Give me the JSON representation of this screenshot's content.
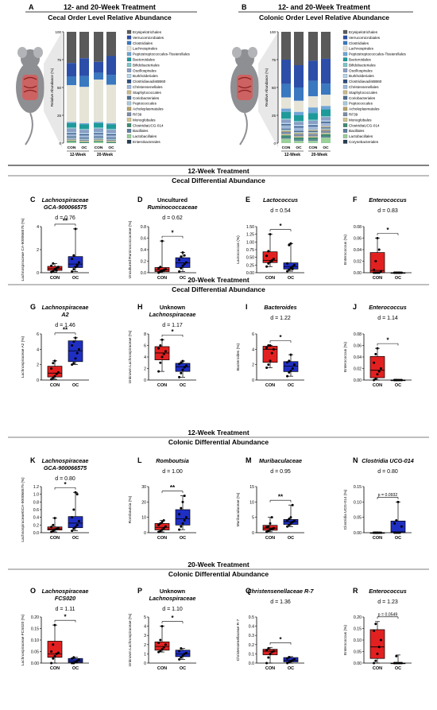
{
  "top": {
    "A": {
      "letter": "A",
      "head": "12- and 20-Week Treatment",
      "sub": "Cecal Order Level Relative Abundance"
    },
    "B": {
      "letter": "B",
      "head": "12- and 20-Week Treatment",
      "sub": "Colonic Order Level Relative Abundance"
    }
  },
  "legendA": [
    "Erysipelotrichales",
    "Verrucomicrobiales",
    "Clostridiales",
    "Lachnospirales",
    "Peptostreptococcales-Tissierellales",
    "Bacteroidales",
    "Bifidobacteriales",
    "Oscillospirales",
    "Burkholderiales",
    "ClostridiavadinBB60",
    "Christensenellales",
    "Staphylococcales",
    "Coriobacteriales",
    "Peptococcales",
    "Acholeplasmatales",
    "RF39",
    "Monoglobales",
    "ClostridiaUCG-014",
    "Bacillales",
    "Lactobacillales",
    "Enterobacterales"
  ],
  "legendB": [
    "Erysipelotrichales",
    "Verrucomicrobiales",
    "Clostridiales",
    "Lachnospirales",
    "Peptostreptococcales-Tissierellales",
    "Bacteroidales",
    "Bifidobacteriales",
    "Oscillospirales",
    "Burkholderiales",
    "ClostridiavadinBB60",
    "Christensenellales",
    "Staphylococcales",
    "Coriobacteriales",
    "Peptococcales",
    "Acholeplasmatales",
    "RF39",
    "Monoglobales",
    "ClostridiaUCG-014",
    "Bacillales",
    "Lactobacillales",
    "Corynebacteriales"
  ],
  "colors": {
    "con": "#e32020",
    "oc": "#1f2fc4",
    "conDark": "#a01515",
    "ocDark": "#0f1a7a"
  },
  "stackColors": [
    "#5a5a5a",
    "#2c4ea8",
    "#3a78c0",
    "#e6e4d7",
    "#6fa6d6",
    "#1e9a9a",
    "#7fc6c8",
    "#8a9fc6",
    "#b7d7ec",
    "#2f4f7f",
    "#9fb8d8",
    "#c9b88a",
    "#4d6e92",
    "#a8c8d8",
    "#b3a16a",
    "#7a8ca8",
    "#d3c58f",
    "#3f8c72",
    "#5d7f9e",
    "#9ad09a",
    "#243b53"
  ],
  "stacked": {
    "A": {
      "ylabel": "Relative Abundance (%)",
      "yticks": [
        "0",
        "25",
        "50",
        "75",
        "100"
      ],
      "groups": [
        "12-Week",
        "20-Week"
      ],
      "bars": [
        {
          "label": "CON",
          "values": [
            28,
            12,
            8,
            33,
            1,
            4,
            1,
            3,
            1,
            1,
            2,
            0,
            1,
            1,
            0,
            1,
            1,
            1,
            0,
            1,
            0
          ]
        },
        {
          "label": "OC",
          "values": [
            24,
            16,
            10,
            33,
            1,
            4,
            1,
            3,
            1,
            1,
            2,
            0,
            1,
            1,
            0,
            1,
            1,
            1,
            0,
            0,
            0
          ]
        },
        {
          "label": "CON",
          "values": [
            27,
            10,
            6,
            38,
            1,
            4,
            1,
            3,
            1,
            1,
            2,
            0,
            1,
            1,
            0,
            1,
            1,
            1,
            0,
            1,
            0
          ]
        },
        {
          "label": "OC",
          "values": [
            22,
            17,
            9,
            35,
            1,
            4,
            1,
            3,
            1,
            1,
            2,
            0,
            1,
            1,
            0,
            1,
            1,
            1,
            0,
            0,
            0
          ]
        }
      ]
    },
    "B": {
      "ylabel": "Realtive Abundance (%)",
      "yticks": [
        "0",
        "25",
        "50",
        "75",
        "100"
      ],
      "groups": [
        "12-Week",
        "20-Week"
      ],
      "bars": [
        {
          "label": "CON",
          "values": [
            25,
            22,
            12,
            10,
            3,
            6,
            1,
            3,
            1,
            1,
            3,
            0,
            1,
            1,
            1,
            2,
            1,
            2,
            1,
            4,
            0
          ]
        },
        {
          "label": "OC",
          "values": [
            30,
            20,
            12,
            10,
            3,
            5,
            1,
            3,
            1,
            1,
            3,
            0,
            1,
            1,
            1,
            2,
            1,
            2,
            1,
            2,
            0
          ]
        },
        {
          "label": "CON",
          "values": [
            26,
            18,
            14,
            10,
            5,
            6,
            1,
            3,
            1,
            1,
            3,
            1,
            1,
            1,
            1,
            2,
            1,
            2,
            1,
            2,
            0
          ]
        },
        {
          "label": "OC",
          "values": [
            24,
            22,
            10,
            10,
            3,
            6,
            1,
            3,
            1,
            1,
            3,
            1,
            1,
            1,
            1,
            2,
            1,
            2,
            1,
            5,
            0
          ]
        }
      ]
    }
  },
  "sections": [
    {
      "treatment": "12-Week Treatment",
      "title": "Cecal Differential Abundance"
    },
    {
      "treatment": "20-Week Treatment",
      "title": "Cecal Differential Abundance"
    },
    {
      "treatment": "12-Week Treatment",
      "title": "Colonic Differential Abundance"
    },
    {
      "treatment": "20-Week Treatment",
      "title": "Colonic Differential Abundance"
    }
  ],
  "panels": [
    {
      "letter": "C",
      "title1": "Lachnospiraceae",
      "title2": "GCA-900066575",
      "italic1": true,
      "italic2": true,
      "d": "d = 0.76",
      "ylabel": "Lachnospiraceae CA-900066575 (%)",
      "yticks": [
        "0",
        "2",
        "4"
      ],
      "ymax": 4.5,
      "sig": "**",
      "con": [
        0.05,
        0.15,
        0.3,
        0.4,
        0.5,
        0.6,
        0.8,
        0.3,
        0.2
      ],
      "oc": [
        0.1,
        0.3,
        0.5,
        0.7,
        0.9,
        1.2,
        1.5,
        3.8,
        0.6
      ],
      "conBox": [
        0.05,
        0.2,
        0.35,
        0.55,
        0.8
      ],
      "ocBox": [
        0.1,
        0.45,
        0.75,
        1.4,
        3.8
      ]
    },
    {
      "letter": "D",
      "title1": "Uncultured",
      "title2": "Ruminococcaceae",
      "italic1": false,
      "italic2": true,
      "d": "d = 0.62",
      "ylabel": "Uncultured Ruminococcaceae (%)",
      "yticks": [
        "0.0",
        "0.2",
        "0.4",
        "0.6",
        "0.8"
      ],
      "ymax": 0.8,
      "sig": "*",
      "con": [
        0.0,
        0.02,
        0.03,
        0.05,
        0.06,
        0.08,
        0.1,
        0.55,
        0.04
      ],
      "oc": [
        0.02,
        0.08,
        0.12,
        0.15,
        0.18,
        0.22,
        0.28,
        0.35,
        0.3
      ],
      "conBox": [
        0.0,
        0.02,
        0.05,
        0.09,
        0.55
      ],
      "ocBox": [
        0.02,
        0.09,
        0.17,
        0.26,
        0.35
      ]
    },
    {
      "letter": "E",
      "title1": "Lactococcus",
      "title2": "",
      "italic1": true,
      "italic2": false,
      "d": "d = 0.54",
      "ylabel": "Lactococcus (%)",
      "yticks": [
        "0.00",
        "0.25",
        "0.50",
        "0.75",
        "1.00",
        "1.25",
        "1.50"
      ],
      "ymax": 1.5,
      "sig": "*",
      "con": [
        0.2,
        0.3,
        0.35,
        0.4,
        0.45,
        0.55,
        0.7,
        1.25,
        0.38
      ],
      "oc": [
        0.05,
        0.1,
        0.15,
        0.2,
        0.25,
        0.3,
        0.9,
        0.95,
        0.12
      ],
      "conBox": [
        0.2,
        0.33,
        0.4,
        0.68,
        1.25
      ],
      "ocBox": [
        0.05,
        0.12,
        0.2,
        0.32,
        0.95
      ]
    },
    {
      "letter": "F",
      "title1": "Enterococcus",
      "title2": "",
      "italic1": true,
      "italic2": false,
      "d": "d = 0.83",
      "ylabel": "Enterococcus (%)",
      "yticks": [
        "0.00",
        "0.02",
        "0.04",
        "0.06",
        "0.08"
      ],
      "ymax": 0.08,
      "sig": "*",
      "con": [
        0.0,
        0.0,
        0.0,
        0.0,
        0.002,
        0.005,
        0.02,
        0.06,
        0.04
      ],
      "oc": [
        0,
        0,
        0,
        0,
        0,
        0,
        0,
        0,
        0
      ],
      "conBox": [
        0.0,
        0.0,
        0.004,
        0.035,
        0.06
      ],
      "ocBox": [
        0,
        0,
        0,
        0,
        0
      ]
    },
    {
      "letter": "G",
      "title1": "Lachnospiraceae",
      "title2": "A2",
      "italic1": true,
      "italic2": true,
      "d": "d = 1.46",
      "ylabel": "Lachnospiraceae A2 (%)",
      "yticks": [
        "0",
        "2",
        "4",
        "6"
      ],
      "ymax": 6.5,
      "sig": "**",
      "con": [
        0.1,
        0.3,
        0.5,
        0.8,
        1.0,
        1.5,
        2.2,
        2.5
      ],
      "oc": [
        2.0,
        2.2,
        2.8,
        3.5,
        4.0,
        4.5,
        5.0,
        5.5
      ],
      "conBox": [
        0.1,
        0.4,
        0.9,
        1.8,
        2.5
      ],
      "ocBox": [
        2.0,
        2.4,
        3.8,
        5.1,
        5.5
      ]
    },
    {
      "letter": "H",
      "title1": "Unknown",
      "title2": "Lachnospiraceae",
      "italic1": false,
      "italic2": true,
      "d": "d = 1.17",
      "ylabel": "Unknown Lachnospiraceae (%)",
      "yticks": [
        "0",
        "2",
        "4",
        "6",
        "8"
      ],
      "ymax": 8,
      "sig": "*",
      "con": [
        1.5,
        3.0,
        4.0,
        4.5,
        5.0,
        5.5,
        6.0,
        7.0
      ],
      "oc": [
        0.5,
        1.2,
        1.8,
        2.2,
        2.5,
        2.8,
        3.0,
        3.3
      ],
      "conBox": [
        1.5,
        3.5,
        4.7,
        5.8,
        7.0
      ],
      "ocBox": [
        0.5,
        1.5,
        2.3,
        2.9,
        3.3
      ]
    },
    {
      "letter": "I",
      "title1": "Bacteroides",
      "title2": "",
      "italic1": true,
      "italic2": false,
      "d": "d = 1.22",
      "ylabel": "Bacteroides (%)",
      "yticks": [
        "0",
        "2",
        "4",
        "6"
      ],
      "ymax": 6,
      "sig": "*",
      "con": [
        1.6,
        2.0,
        2.5,
        3.5,
        4.0,
        4.2,
        4.5,
        4.5
      ],
      "oc": [
        0.5,
        1.0,
        1.2,
        1.5,
        2.0,
        2.3,
        2.5,
        3.3
      ],
      "conBox": [
        1.6,
        2.3,
        4.0,
        4.4,
        4.5
      ],
      "ocBox": [
        0.5,
        1.1,
        1.8,
        2.4,
        3.3
      ]
    },
    {
      "letter": "J",
      "title1": "Enterococcus",
      "title2": "",
      "italic1": true,
      "italic2": false,
      "d": "d = 1.14",
      "ylabel": "Enterococcus (%)",
      "yticks": [
        "0.00",
        "0.02",
        "0.04",
        "0.06",
        "0.08"
      ],
      "ymax": 0.08,
      "sig": "*",
      "con": [
        0.0,
        0.002,
        0.01,
        0.015,
        0.02,
        0.03,
        0.045,
        0.055
      ],
      "oc": [
        0,
        0,
        0,
        0,
        0,
        0,
        0
      ],
      "conBox": [
        0.0,
        0.004,
        0.017,
        0.041,
        0.055
      ],
      "ocBox": [
        0,
        0,
        0,
        0,
        0
      ]
    },
    {
      "letter": "K",
      "title1": "Lachnospiraceae",
      "title2": "GCA-900066575",
      "italic1": true,
      "italic2": true,
      "d": "d = 0.80",
      "ylabel": "LachnospiraceaeGCA-900066575 (%)",
      "yticks": [
        "0.0",
        "0.2",
        "0.4",
        "0.6",
        "0.8",
        "1.0",
        "1.2"
      ],
      "ymax": 1.2,
      "sig": "*",
      "con": [
        0.02,
        0.05,
        0.08,
        0.1,
        0.12,
        0.15,
        0.2,
        0.38,
        0.1
      ],
      "oc": [
        0.05,
        0.1,
        0.15,
        0.2,
        0.3,
        0.4,
        0.6,
        1.05,
        1.0
      ],
      "conBox": [
        0.02,
        0.07,
        0.1,
        0.15,
        0.38
      ],
      "ocBox": [
        0.05,
        0.13,
        0.25,
        0.42,
        1.05
      ]
    },
    {
      "letter": "L",
      "title1": "Romboutsia",
      "title2": "",
      "italic1": true,
      "italic2": false,
      "d": "d = 1.00",
      "ylabel": "Romboutsia (%)",
      "yticks": [
        "0",
        "10",
        "20",
        "30"
      ],
      "ymax": 30,
      "sig": "**",
      "con": [
        0.5,
        1.0,
        2.0,
        3.0,
        4.0,
        5.0,
        6.0,
        7.0,
        8.0
      ],
      "oc": [
        2.0,
        4.0,
        6.0,
        8.0,
        10.0,
        12.0,
        16.0,
        20.0,
        24.0
      ],
      "conBox": [
        0.5,
        1.8,
        3.5,
        6.0,
        8.0
      ],
      "ocBox": [
        2.0,
        5.0,
        9.0,
        15.0,
        24.0
      ]
    },
    {
      "letter": "M",
      "title1": "Muribaculaceae",
      "title2": "",
      "italic1": true,
      "italic2": false,
      "d": "d = 0.95",
      "ylabel": "Muribaculaceae (%)",
      "yticks": [
        "0",
        "5",
        "10",
        "15"
      ],
      "ymax": 15,
      "sig": "**",
      "con": [
        0.3,
        0.6,
        1.0,
        1.2,
        1.5,
        1.8,
        2.0,
        3.0,
        5.0
      ],
      "oc": [
        2.0,
        2.5,
        3.0,
        3.5,
        3.8,
        4.0,
        4.5,
        5.0,
        9.0
      ],
      "conBox": [
        0.3,
        0.8,
        1.5,
        2.4,
        5.0
      ],
      "ocBox": [
        2.0,
        2.7,
        3.6,
        4.3,
        9.0
      ]
    },
    {
      "letter": "N",
      "title1": "Clostridia UCG-014",
      "title2": "",
      "italic1": true,
      "italic2": false,
      "d": "d = 0.80",
      "ylabel": "Clostridia UCG-014 (%)",
      "yticks": [
        "0.00",
        "0.05",
        "0.10",
        "0.15"
      ],
      "ymax": 0.15,
      "sig": "p = 0.0932",
      "con": [
        0,
        0,
        0,
        0,
        0,
        0,
        0,
        0
      ],
      "oc": [
        0.0,
        0.0,
        0.0,
        0.0,
        0.02,
        0.03,
        0.04,
        0.1
      ],
      "conBox": [
        0,
        0,
        0,
        0,
        0
      ],
      "ocBox": [
        0.0,
        0.0,
        0.003,
        0.038,
        0.1
      ]
    },
    {
      "letter": "O",
      "title1": "Lachnospiraceae",
      "title2": "FCS020",
      "italic1": true,
      "italic2": true,
      "d": "d = 1.11",
      "ylabel": "Lachnospiraceae FCS020 (%)",
      "yticks": [
        "0.00",
        "0.05",
        "0.10",
        "0.15",
        "0.20"
      ],
      "ymax": 0.2,
      "sig": "*",
      "con": [
        0.0,
        0.02,
        0.03,
        0.04,
        0.045,
        0.05,
        0.08,
        0.165
      ],
      "oc": [
        0.0,
        0.0,
        0.005,
        0.01,
        0.015,
        0.02,
        0.025
      ],
      "conBox": [
        0.0,
        0.025,
        0.04,
        0.095,
        0.165
      ],
      "ocBox": [
        0.0,
        0.003,
        0.01,
        0.02,
        0.025
      ]
    },
    {
      "letter": "P",
      "title1": "Unknown",
      "title2": "Lachnospiraceae",
      "italic1": false,
      "italic2": true,
      "d": "d = 1.10",
      "ylabel": "Unknown Lachnospiraceae (%)",
      "yticks": [
        "0",
        "1",
        "2",
        "3",
        "4",
        "5"
      ],
      "ymax": 5,
      "sig": "*",
      "con": [
        1.2,
        1.3,
        1.5,
        1.7,
        2.0,
        2.2,
        2.5,
        4.0
      ],
      "oc": [
        0.4,
        0.6,
        0.8,
        1.0,
        1.1,
        1.3,
        1.6
      ],
      "conBox": [
        1.2,
        1.4,
        1.8,
        2.3,
        4.0
      ],
      "ocBox": [
        0.4,
        0.7,
        1.0,
        1.4,
        1.6
      ]
    },
    {
      "letter": "Q",
      "title1": "Christensenellaceae R-7",
      "title2": "",
      "italic1": true,
      "italic2": false,
      "d": "d = 1.36",
      "ylabel": "Christensenellaceae R-7",
      "yticks": [
        "0.0",
        "0.1",
        "0.2",
        "0.3",
        "0.4",
        "0.5"
      ],
      "ymax": 0.5,
      "sig": "*",
      "con": [
        0.0,
        0.06,
        0.1,
        0.12,
        0.13,
        0.14,
        0.16
      ],
      "oc": [
        0.0,
        0.01,
        0.02,
        0.03,
        0.04,
        0.05,
        0.065
      ],
      "conBox": [
        0.0,
        0.09,
        0.13,
        0.15,
        0.17
      ],
      "ocBox": [
        0.0,
        0.013,
        0.03,
        0.06,
        0.07
      ]
    },
    {
      "letter": "R",
      "title1": "Enterococcus",
      "title2": "",
      "italic1": true,
      "italic2": false,
      "d": "d = 1.23",
      "ylabel": "Enterococcus (%)",
      "yticks": [
        "0.00",
        "0.05",
        "0.10",
        "0.15",
        "0.20"
      ],
      "ymax": 0.2,
      "sig": "p = 0.0549",
      "con": [
        0.0,
        0.01,
        0.04,
        0.07,
        0.1,
        0.14,
        0.17
      ],
      "oc": [
        0,
        0,
        0,
        0,
        0,
        0,
        0.03
      ],
      "conBox": [
        0.0,
        0.02,
        0.07,
        0.145,
        0.18
      ],
      "ocBox": [
        0,
        0,
        0,
        0,
        0.035
      ]
    }
  ],
  "xlabels": {
    "con": "CON",
    "oc": "OC"
  }
}
